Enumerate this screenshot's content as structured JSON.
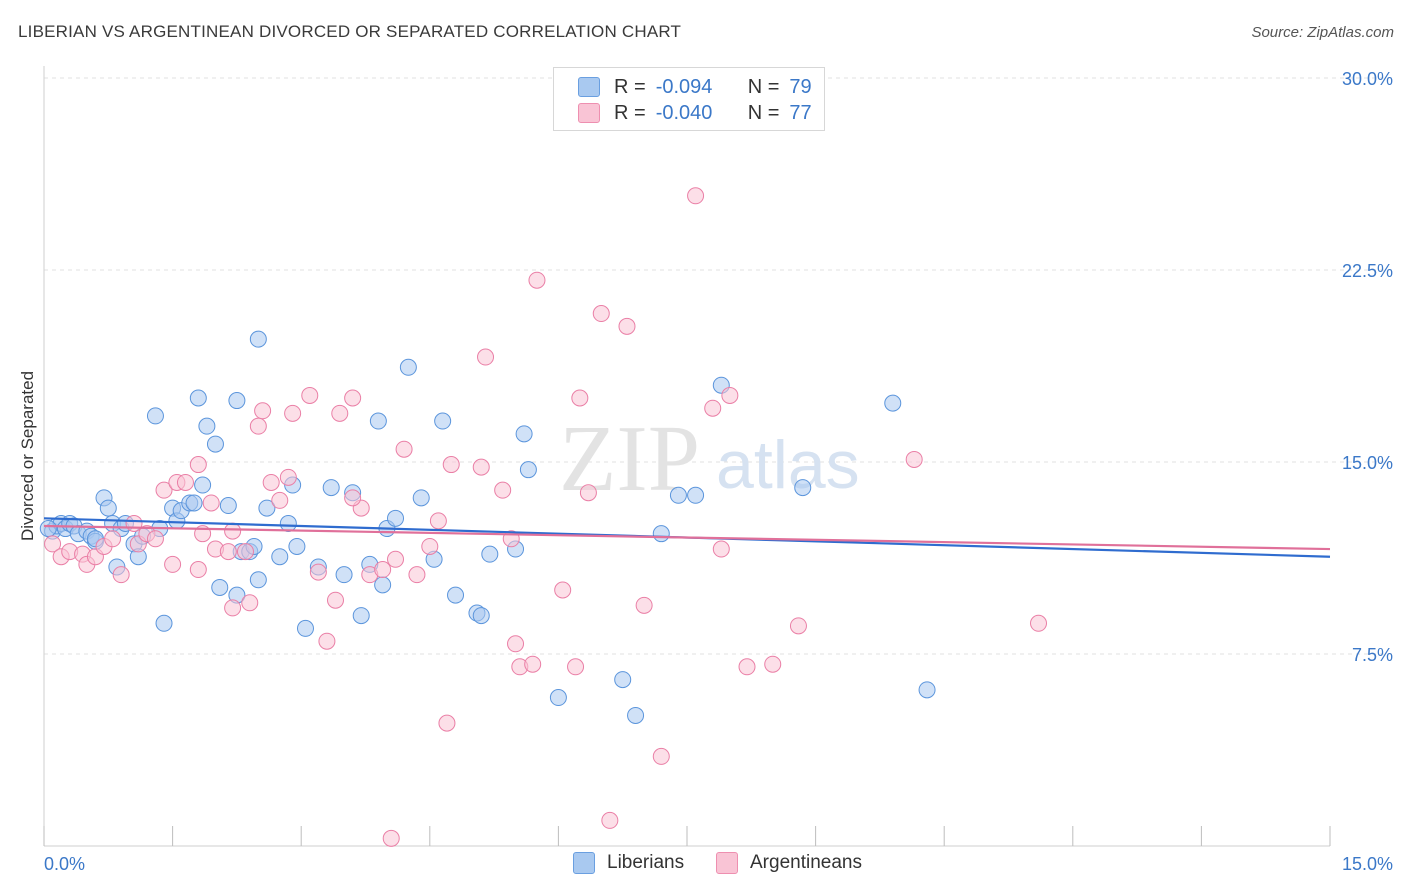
{
  "title": "LIBERIAN VS ARGENTINEAN DIVORCED OR SEPARATED CORRELATION CHART",
  "source": "Source: ZipAtlas.com",
  "watermark": "ZIPatlas",
  "legend": {
    "r_label": "R =",
    "n_label": "N =",
    "rows": [
      {
        "r": "-0.094",
        "n": "79",
        "color": "#a9c9f0",
        "border": "#6a9fe0"
      },
      {
        "r": "-0.040",
        "n": "77",
        "color": "#f9c4d5",
        "border": "#ee8fb0"
      }
    ]
  },
  "bottom_legend": [
    {
      "label": "Liberians",
      "color": "#a9c9f0",
      "border": "#6a9fe0"
    },
    {
      "label": "Argentineans",
      "color": "#f9c4d5",
      "border": "#ee8fb0"
    }
  ],
  "chart_data": {
    "type": "scatter",
    "ylabel": "Divorced or Separated",
    "xlim": [
      0,
      15
    ],
    "ylim": [
      0,
      30
    ],
    "y_ticks": [
      "7.5%",
      "15.0%",
      "22.5%",
      "30.0%"
    ],
    "y_tick_values": [
      7.5,
      15,
      22.5,
      30
    ],
    "x_tick_labels": [
      "0.0%",
      "15.0%"
    ],
    "series": [
      {
        "name": "Liberians",
        "color": "#5b95dc",
        "fill": "#a9c9f0",
        "trend": [
          [
            0,
            12.8
          ],
          [
            15,
            11.3
          ]
        ],
        "points": [
          [
            0.1,
            12.3
          ],
          [
            0.15,
            12.5
          ],
          [
            0.2,
            12.6
          ],
          [
            0.25,
            12.4
          ],
          [
            0.3,
            12.6
          ],
          [
            0.35,
            12.5
          ],
          [
            0.4,
            12.2
          ],
          [
            0.5,
            12.3
          ],
          [
            0.55,
            12.1
          ],
          [
            0.6,
            11.9
          ],
          [
            0.7,
            13.6
          ],
          [
            0.75,
            13.2
          ],
          [
            0.8,
            12.6
          ],
          [
            0.85,
            10.9
          ],
          [
            0.9,
            12.4
          ],
          [
            0.95,
            12.6
          ],
          [
            1.05,
            11.8
          ],
          [
            1.1,
            11.3
          ],
          [
            1.15,
            12.1
          ],
          [
            1.3,
            16.8
          ],
          [
            1.35,
            12.4
          ],
          [
            1.4,
            8.7
          ],
          [
            1.5,
            13.2
          ],
          [
            1.55,
            12.7
          ],
          [
            1.6,
            13.1
          ],
          [
            1.7,
            13.4
          ],
          [
            1.8,
            17.5
          ],
          [
            1.85,
            14.1
          ],
          [
            1.9,
            16.4
          ],
          [
            2.0,
            15.7
          ],
          [
            2.05,
            10.1
          ],
          [
            2.15,
            13.3
          ],
          [
            2.25,
            17.4
          ],
          [
            2.25,
            9.8
          ],
          [
            2.3,
            11.5
          ],
          [
            2.4,
            11.5
          ],
          [
            2.45,
            11.7
          ],
          [
            2.5,
            19.8
          ],
          [
            2.6,
            13.2
          ],
          [
            2.75,
            11.3
          ],
          [
            2.85,
            12.6
          ],
          [
            2.9,
            14.1
          ],
          [
            2.95,
            11.7
          ],
          [
            3.05,
            8.5
          ],
          [
            3.2,
            10.9
          ],
          [
            3.35,
            14.0
          ],
          [
            3.5,
            10.6
          ],
          [
            3.6,
            13.8
          ],
          [
            3.7,
            9.0
          ],
          [
            3.8,
            11.0
          ],
          [
            3.9,
            16.6
          ],
          [
            3.95,
            10.2
          ],
          [
            4.0,
            12.4
          ],
          [
            4.1,
            12.8
          ],
          [
            4.25,
            18.7
          ],
          [
            4.4,
            13.6
          ],
          [
            4.55,
            11.2
          ],
          [
            4.65,
            16.6
          ],
          [
            4.8,
            9.8
          ],
          [
            5.05,
            9.1
          ],
          [
            5.1,
            9.0
          ],
          [
            5.2,
            11.4
          ],
          [
            5.5,
            11.6
          ],
          [
            5.6,
            16.1
          ],
          [
            5.65,
            14.7
          ],
          [
            6.0,
            5.8
          ],
          [
            6.75,
            6.5
          ],
          [
            6.9,
            5.1
          ],
          [
            7.2,
            12.2
          ],
          [
            7.4,
            13.7
          ],
          [
            7.6,
            13.7
          ],
          [
            7.9,
            18.0
          ],
          [
            8.85,
            14.0
          ],
          [
            9.9,
            17.3
          ],
          [
            10.3,
            6.1
          ],
          [
            0.05,
            12.4
          ],
          [
            0.6,
            12.0
          ],
          [
            1.75,
            13.4
          ],
          [
            2.5,
            10.4
          ]
        ]
      },
      {
        "name": "Argentineans",
        "color": "#ea7fa6",
        "fill": "#f9c4d5",
        "trend": [
          [
            0,
            12.5
          ],
          [
            15,
            11.6
          ]
        ],
        "points": [
          [
            0.1,
            11.8
          ],
          [
            0.2,
            11.3
          ],
          [
            0.3,
            11.5
          ],
          [
            0.45,
            11.4
          ],
          [
            0.5,
            11.0
          ],
          [
            0.6,
            11.3
          ],
          [
            0.7,
            11.7
          ],
          [
            0.8,
            12.0
          ],
          [
            0.9,
            10.6
          ],
          [
            1.05,
            12.6
          ],
          [
            1.1,
            11.8
          ],
          [
            1.2,
            12.2
          ],
          [
            1.3,
            12.0
          ],
          [
            1.4,
            13.9
          ],
          [
            1.5,
            11.0
          ],
          [
            1.55,
            14.2
          ],
          [
            1.65,
            14.2
          ],
          [
            1.8,
            14.9
          ],
          [
            1.85,
            12.2
          ],
          [
            1.95,
            13.4
          ],
          [
            2.0,
            11.6
          ],
          [
            2.15,
            11.5
          ],
          [
            2.2,
            9.3
          ],
          [
            2.35,
            11.5
          ],
          [
            2.4,
            9.5
          ],
          [
            2.5,
            16.4
          ],
          [
            2.55,
            17.0
          ],
          [
            2.65,
            14.2
          ],
          [
            2.75,
            13.5
          ],
          [
            2.85,
            14.4
          ],
          [
            2.9,
            16.9
          ],
          [
            3.1,
            17.6
          ],
          [
            3.2,
            10.7
          ],
          [
            3.3,
            8.0
          ],
          [
            3.4,
            9.6
          ],
          [
            3.45,
            16.9
          ],
          [
            3.6,
            17.5
          ],
          [
            3.7,
            13.2
          ],
          [
            3.8,
            10.6
          ],
          [
            3.95,
            10.8
          ],
          [
            4.1,
            11.2
          ],
          [
            4.2,
            15.5
          ],
          [
            4.35,
            10.6
          ],
          [
            4.5,
            11.7
          ],
          [
            4.6,
            12.7
          ],
          [
            4.7,
            4.8
          ],
          [
            4.75,
            14.9
          ],
          [
            5.1,
            14.8
          ],
          [
            5.15,
            19.1
          ],
          [
            5.35,
            13.9
          ],
          [
            5.5,
            7.9
          ],
          [
            5.55,
            7.0
          ],
          [
            5.7,
            7.1
          ],
          [
            5.75,
            22.1
          ],
          [
            6.05,
            10.0
          ],
          [
            6.2,
            7.0
          ],
          [
            6.25,
            17.5
          ],
          [
            6.35,
            13.8
          ],
          [
            6.5,
            20.8
          ],
          [
            6.6,
            1.0
          ],
          [
            6.8,
            20.3
          ],
          [
            7.0,
            9.4
          ],
          [
            7.2,
            3.5
          ],
          [
            7.6,
            25.4
          ],
          [
            7.8,
            17.1
          ],
          [
            7.9,
            11.6
          ],
          [
            8.0,
            17.6
          ],
          [
            8.2,
            7.0
          ],
          [
            8.5,
            7.1
          ],
          [
            8.8,
            8.6
          ],
          [
            10.15,
            15.1
          ],
          [
            11.6,
            8.7
          ],
          [
            4.05,
            0.3
          ],
          [
            2.2,
            12.3
          ],
          [
            3.6,
            13.6
          ],
          [
            1.8,
            10.8
          ],
          [
            5.45,
            12.0
          ]
        ]
      }
    ]
  }
}
